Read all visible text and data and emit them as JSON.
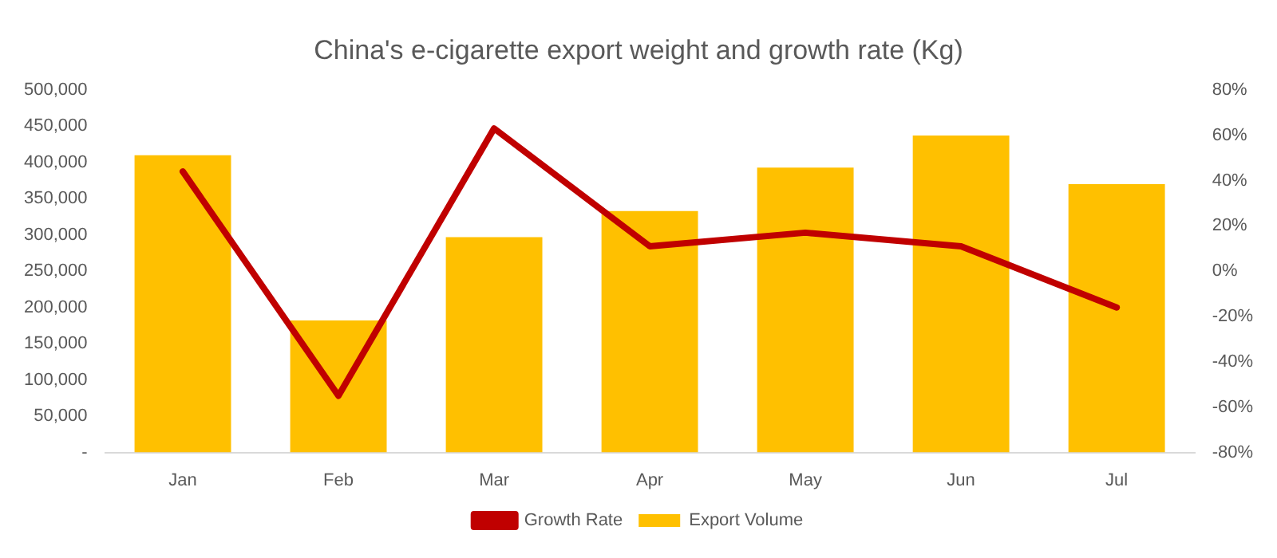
{
  "chart_data": {
    "type": "bar",
    "title": "China's e-cigarette export weight and growth rate (Kg)",
    "categories": [
      "Jan",
      "Feb",
      "Mar",
      "Apr",
      "May",
      "Jun",
      "Jul"
    ],
    "series": [
      {
        "name": "Export Volume",
        "color": "#ffc000",
        "values": [
          410000,
          182000,
          297000,
          333000,
          393000,
          437000,
          370000
        ]
      },
      {
        "name": "Growth Rate",
        "type": "line",
        "axis": "y2",
        "color": "#c00000",
        "values": [
          44,
          -55,
          63,
          11,
          17,
          11,
          -16
        ]
      }
    ],
    "ylim": [
      0,
      500000
    ],
    "yticks": [
      {
        "value": 0,
        "label": "-"
      },
      {
        "value": 50000,
        "label": "50,000"
      },
      {
        "value": 100000,
        "label": "100,000"
      },
      {
        "value": 150000,
        "label": "150,000"
      },
      {
        "value": 200000,
        "label": "200,000"
      },
      {
        "value": 250000,
        "label": "250,000"
      },
      {
        "value": 300000,
        "label": "300,000"
      },
      {
        "value": 350000,
        "label": "350,000"
      },
      {
        "value": 400000,
        "label": "400,000"
      },
      {
        "value": 450000,
        "label": "450,000"
      },
      {
        "value": 500000,
        "label": "500,000"
      }
    ],
    "y2lim": [
      -80,
      80
    ],
    "y2ticks": [
      {
        "value": -80,
        "label": "-80%"
      },
      {
        "value": -60,
        "label": "-60%"
      },
      {
        "value": -40,
        "label": "-40%"
      },
      {
        "value": -20,
        "label": "-20%"
      },
      {
        "value": 0,
        "label": "0%"
      },
      {
        "value": 20,
        "label": "20%"
      },
      {
        "value": 40,
        "label": "40%"
      },
      {
        "value": 60,
        "label": "60%"
      },
      {
        "value": 80,
        "label": "80%"
      }
    ],
    "grid": false,
    "legend": "bottom",
    "marker": "none",
    "line_style": "solid"
  }
}
